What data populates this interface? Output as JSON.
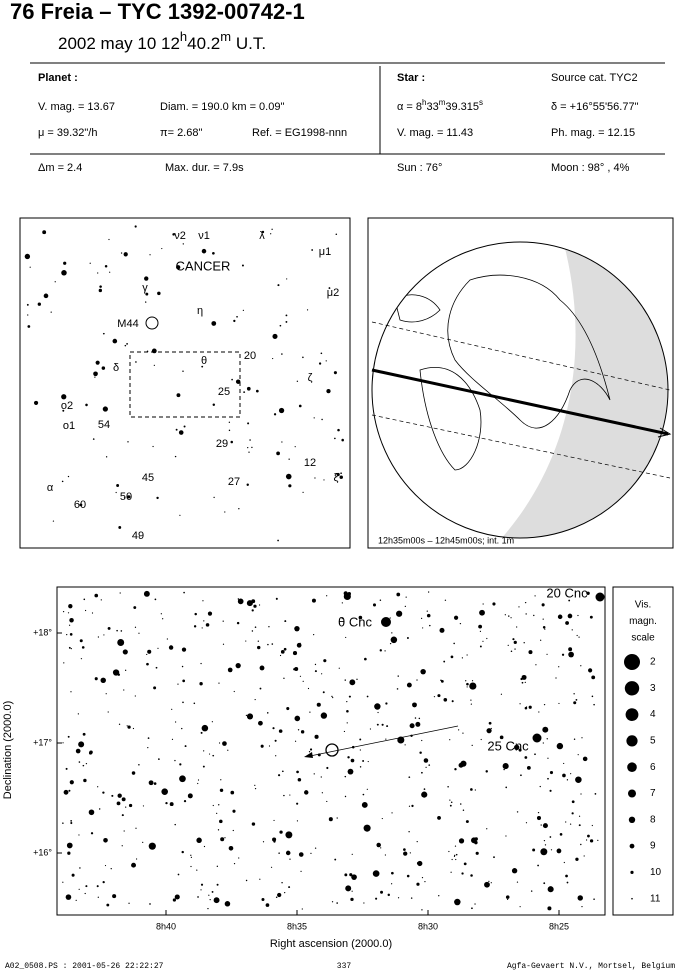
{
  "header": {
    "title": "76 Freia  –  TYC 1392-00742-1",
    "date": [
      "2002 may 10  12",
      "h",
      "40.2",
      "m",
      " U.T."
    ]
  },
  "info": {
    "rows": [
      [
        "Planet :",
        "Star :",
        "Source cat.  TYC2"
      ],
      [
        "V. mag. = 13.67",
        "Diam. = 190.0 km = 0.09\"",
        [
          "α = 8",
          "h",
          "33",
          "m",
          "39.315",
          "s"
        ],
        "δ = +16°55'56.77\""
      ],
      [
        "μ = 39.32\"/h",
        "π= 2.68\"",
        "Ref. = EG1998-nnn",
        "V. mag. = 11.43",
        "Ph. mag. = 12.15"
      ],
      [
        "Δm = 2.4",
        "Max. dur. = 7.9s",
        "Sun :  76°",
        "Moon :  98° ,  4%"
      ]
    ]
  },
  "finder": {
    "labels": [
      "ν2",
      "ν1",
      "λ",
      "μ1",
      "CANCER",
      "γ",
      "μ2",
      "η",
      "M44",
      "δ",
      "θ",
      "20",
      "ζ",
      "25",
      "ο2",
      "ο1",
      "54",
      "29",
      "12",
      "ξ",
      "45",
      "27",
      "α",
      "50",
      "60",
      "49"
    ]
  },
  "globe": {
    "caption": "12h35m00s – 12h45m00s; int.  1m"
  },
  "detail": {
    "labels": [
      "20 Cnc",
      "θ Cnc",
      "25 Cnc"
    ],
    "yticks": [
      "+18°",
      "+17°",
      "+16°"
    ],
    "xticks": [
      "8h40",
      "8h35",
      "8h30",
      "8h25"
    ],
    "ylabel": "Declination (2000.0)",
    "xlabel": "Right ascension (2000.0)"
  },
  "legend": {
    "title": [
      "Vis.",
      "magn.",
      "scale"
    ],
    "items": [
      "2",
      "3",
      "4",
      "5",
      "6",
      "7",
      "8",
      "9",
      "10",
      "11"
    ]
  },
  "footer": {
    "left": "A02_0508.PS : 2001-05-26 22:22:27",
    "center": "337",
    "right": "Agfa-Gevaert N.V., Mortsel, Belgium"
  }
}
